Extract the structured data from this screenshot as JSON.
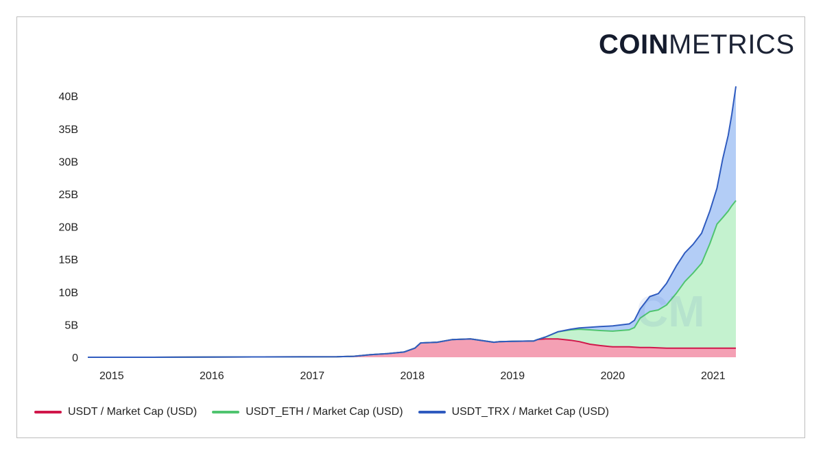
{
  "logo": {
    "bold": "COIN",
    "light": "METRICS"
  },
  "chart_data": {
    "type": "area",
    "stacked": true,
    "title": "",
    "xlabel": "",
    "ylabel": "",
    "x_ticks": [
      "2015",
      "2016",
      "2017",
      "2018",
      "2019",
      "2020",
      "2021"
    ],
    "y_ticks": [
      "0",
      "5B",
      "10B",
      "15B",
      "20B",
      "25B",
      "30B",
      "35B",
      "40B"
    ],
    "ylim": [
      0,
      43
    ],
    "y_unit": "B",
    "grid": false,
    "legend_position": "bottom",
    "x": [
      "2014-10-06",
      "2015-06-01",
      "2016-06-01",
      "2017-04-01",
      "2017-06-01",
      "2017-08-01",
      "2017-10-01",
      "2017-12-01",
      "2018-01-10",
      "2018-01-31",
      "2018-04-01",
      "2018-05-25",
      "2018-08-01",
      "2018-10-25",
      "2018-11-15",
      "2019-01-01",
      "2019-03-20",
      "2019-04-01",
      "2019-05-01",
      "2019-06-15",
      "2019-08-01",
      "2019-09-01",
      "2019-10-10",
      "2019-11-15",
      "2020-01-01",
      "2020-03-01",
      "2020-03-20",
      "2020-04-10",
      "2020-05-15",
      "2020-06-15",
      "2020-07-15",
      "2020-08-20",
      "2020-09-20",
      "2020-10-20",
      "2020-11-20",
      "2020-12-20",
      "2021-01-15",
      "2021-02-05",
      "2021-02-25",
      "2021-03-10",
      "2021-03-25"
    ],
    "series": [
      {
        "name": "USDT / Market Cap (USD)",
        "color": "#d0174a",
        "fill": "#f4a0b4",
        "values": [
          0.0,
          0.0,
          0.05,
          0.07,
          0.15,
          0.4,
          0.55,
          0.8,
          1.4,
          2.2,
          2.3,
          2.7,
          2.8,
          2.3,
          2.4,
          2.45,
          2.5,
          2.7,
          2.8,
          2.8,
          2.6,
          2.4,
          2.0,
          1.8,
          1.6,
          1.6,
          1.55,
          1.5,
          1.5,
          1.45,
          1.4,
          1.4,
          1.4,
          1.4,
          1.4,
          1.4,
          1.4,
          1.4,
          1.4,
          1.4,
          1.4
        ]
      },
      {
        "name": "USDT_ETH / Market Cap (USD)",
        "color": "#4fc46f",
        "fill": "#c4f2cf",
        "values": [
          0.0,
          0.0,
          0.0,
          0.0,
          0.0,
          0.0,
          0.0,
          0.0,
          0.0,
          0.0,
          0.0,
          0.0,
          0.0,
          0.0,
          0.0,
          0.0,
          0.0,
          0.0,
          0.3,
          1.1,
          1.6,
          1.9,
          2.2,
          2.3,
          2.4,
          2.6,
          3.0,
          4.5,
          5.5,
          5.8,
          6.6,
          8.4,
          10.2,
          11.5,
          13.0,
          16.0,
          19.0,
          20.0,
          21.0,
          21.8,
          22.6
        ]
      },
      {
        "name": "USDT_TRX / Market Cap (USD)",
        "color": "#2f5bbf",
        "fill": "#b3cdf6",
        "values": [
          0.0,
          0.0,
          0.0,
          0.0,
          0.0,
          0.0,
          0.0,
          0.0,
          0.0,
          0.0,
          0.0,
          0.0,
          0.0,
          0.0,
          0.0,
          0.0,
          0.0,
          0.0,
          0.0,
          0.0,
          0.1,
          0.2,
          0.4,
          0.6,
          0.8,
          0.9,
          1.1,
          1.4,
          2.3,
          2.5,
          3.3,
          4.2,
          4.4,
          4.4,
          4.6,
          5.0,
          5.5,
          9.0,
          11.6,
          14.0,
          17.5
        ]
      }
    ]
  }
}
